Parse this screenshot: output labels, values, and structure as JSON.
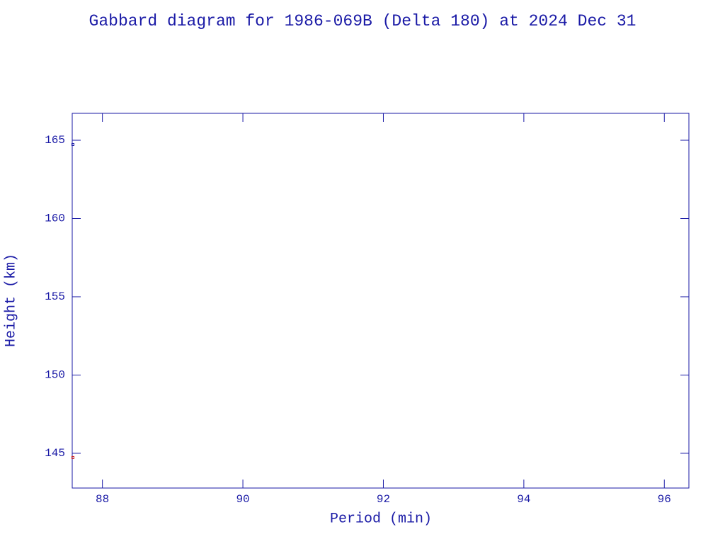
{
  "chart_data": {
    "type": "scatter",
    "title": "Gabbard diagram for 1986-069B (Delta 180) at 2024 Dec 31",
    "x_label": "Period (min)",
    "y_label": "Height (km)",
    "xlim": [
      87.57,
      96.35
    ],
    "xticks": [
      88,
      90,
      92,
      94,
      96
    ],
    "ylim": [
      142.78,
      166.72
    ],
    "yticks": [
      145,
      150,
      155,
      160,
      165
    ],
    "series": [
      {
        "color": "#1a1aa6",
        "x": [
          87.58
        ],
        "values": [
          164.73
        ]
      },
      {
        "color": "#cc1a1a",
        "x": [
          87.58
        ],
        "values": [
          144.73
        ]
      }
    ]
  }
}
